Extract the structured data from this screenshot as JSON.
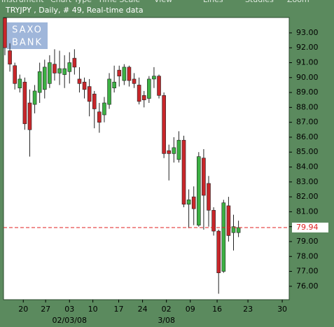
{
  "menu": [
    "Instrument",
    "Chart Type",
    "Time Scale",
    "View",
    "Lines",
    "Studies",
    "Zoom"
  ],
  "logo": [
    "SAXO",
    "BANK"
  ],
  "chart_data": {
    "type": "candlestick",
    "title": "TRYJPY , Daily, # 49, Real-time data",
    "x": [
      0,
      1,
      2,
      3,
      4,
      5,
      6,
      7,
      8,
      9,
      10,
      11,
      12,
      13,
      14,
      15,
      16,
      17,
      18,
      19,
      20,
      21,
      22,
      23,
      24,
      25,
      26,
      27,
      28,
      29,
      30,
      31,
      32,
      33,
      34,
      35,
      36,
      37,
      38,
      39,
      40,
      41,
      42,
      43,
      44,
      45,
      46,
      47
    ],
    "open": [
      94.0,
      91.8,
      90.8,
      89.3,
      89.7,
      88.3,
      88.2,
      89.0,
      89.2,
      89.6,
      90.9,
      90.3,
      90.2,
      90.4,
      91.3,
      89.9,
      89.7,
      89.4,
      88.9,
      87.7,
      87.5,
      88.2,
      89.3,
      90.5,
      89.8,
      90.7,
      89.9,
      89.5,
      88.8,
      88.6,
      89.9,
      90.1,
      88.8,
      85.1,
      84.9,
      84.5,
      85.8,
      81.5,
      82.0,
      80.1,
      84.6,
      82.9,
      81.1,
      79.7,
      77.0,
      81.4,
      79.6,
      79.6
    ],
    "high": [
      94.03,
      92.3,
      91.0,
      90.2,
      90.0,
      89.2,
      89.5,
      91.0,
      91.2,
      91.5,
      91.9,
      91.8,
      91.5,
      91.7,
      91.9,
      90.7,
      90.0,
      89.9,
      89.1,
      88.3,
      88.7,
      90.3,
      90.8,
      90.8,
      90.9,
      90.8,
      90.3,
      90.0,
      89.1,
      90.1,
      90.7,
      90.2,
      89.0,
      85.5,
      86.0,
      86.4,
      86.1,
      82.5,
      82.7,
      85.0,
      85.2,
      83.4,
      81.3,
      79.8,
      81.8,
      82.0,
      80.8,
      80.4
    ],
    "low": [
      91.5,
      90.4,
      89.2,
      89.0,
      86.5,
      84.7,
      87.6,
      88.3,
      88.6,
      89.3,
      89.8,
      89.5,
      89.3,
      89.6,
      90.2,
      89.0,
      88.6,
      87.4,
      86.6,
      86.3,
      87.0,
      87.9,
      89.0,
      89.4,
      89.5,
      89.4,
      89.3,
      88.2,
      88.0,
      88.3,
      89.3,
      88.6,
      84.6,
      83.1,
      84.3,
      84.3,
      81.3,
      79.9,
      80.1,
      80.0,
      79.8,
      80.0,
      79.4,
      75.5,
      76.9,
      79.0,
      78.4,
      79.3
    ],
    "close": [
      92.0,
      90.9,
      89.6,
      89.9,
      86.9,
      86.5,
      89.1,
      90.4,
      90.7,
      91.0,
      90.3,
      90.6,
      90.6,
      91.0,
      90.7,
      89.6,
      89.2,
      88.4,
      87.9,
      87.0,
      88.3,
      89.9,
      89.7,
      90.1,
      90.7,
      89.8,
      89.6,
      88.4,
      88.5,
      89.9,
      90.1,
      88.8,
      84.9,
      84.9,
      85.3,
      85.8,
      81.5,
      81.8,
      81.2,
      84.7,
      82.1,
      81.1,
      79.7,
      76.9,
      81.6,
      79.4,
      80.0,
      79.94
    ],
    "up_color": "#3cb043",
    "down_color": "#c8262a",
    "xlim": [
      -0.28,
      57.2
    ],
    "ylim": [
      75.1,
      94.03
    ],
    "xticks": [
      {
        "value": 3.7,
        "label": "20"
      },
      {
        "value": 8.2,
        "label": "27"
      },
      {
        "value": 13.0,
        "label": "03"
      },
      {
        "value": 17.7,
        "label": "10"
      },
      {
        "value": 22.9,
        "label": "17"
      },
      {
        "value": 27.7,
        "label": "24"
      },
      {
        "value": 32.5,
        "label": "02"
      },
      {
        "value": 37.3,
        "label": "09"
      },
      {
        "value": 42.7,
        "label": "16"
      },
      {
        "value": 48.9,
        "label": "23"
      },
      {
        "value": 55.8,
        "label": "30"
      }
    ],
    "date_labels": [
      {
        "value": 13.0,
        "label": "02/03/08"
      },
      {
        "value": 32.5,
        "label": "3/08"
      }
    ],
    "yticks": [
      {
        "value": 76,
        "label": "76.00"
      },
      {
        "value": 77,
        "label": "77.00"
      },
      {
        "value": 78,
        "label": "78.00"
      },
      {
        "value": 79,
        "label": "79.00"
      },
      {
        "value": 80,
        "label": "80.00"
      },
      {
        "value": 81,
        "label": "81.00"
      },
      {
        "value": 82,
        "label": "82.00"
      },
      {
        "value": 83,
        "label": "83.00"
      },
      {
        "value": 84,
        "label": "84.00"
      },
      {
        "value": 85,
        "label": "85.00"
      },
      {
        "value": 86,
        "label": "86.00"
      },
      {
        "value": 87,
        "label": "87.00"
      },
      {
        "value": 88,
        "label": "88.00"
      },
      {
        "value": 89,
        "label": "89.00"
      },
      {
        "value": 90,
        "label": "90.00"
      },
      {
        "value": 91,
        "label": "91.00"
      },
      {
        "value": 92,
        "label": "92.00"
      },
      {
        "value": 93,
        "label": "93.00"
      }
    ],
    "last_price": {
      "value": 79.94,
      "label": "79.94",
      "color": "#e02020"
    }
  }
}
